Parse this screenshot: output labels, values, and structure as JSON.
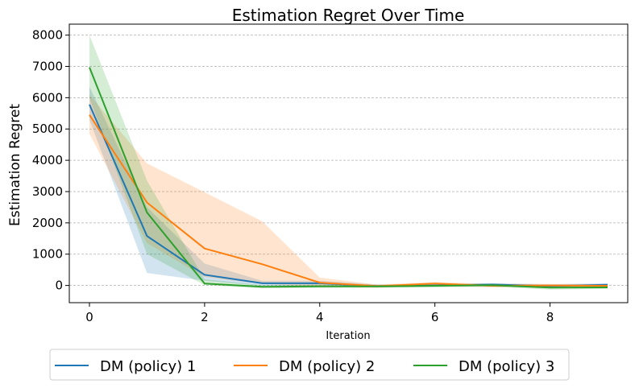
{
  "chart_data": {
    "type": "line",
    "title": "Estimation Regret Over Time",
    "xlabel": "Iteration",
    "ylabel": "Estimation Regret",
    "x": [
      0,
      1,
      2,
      3,
      4,
      5,
      6,
      7,
      8,
      9
    ],
    "xlim": [
      -0.35,
      9.35
    ],
    "ylim": [
      -550,
      8350
    ],
    "xticks": [
      0,
      2,
      4,
      6,
      8
    ],
    "yticks": [
      0,
      1000,
      2000,
      3000,
      4000,
      5000,
      6000,
      7000,
      8000
    ],
    "grid": "horizontal dashed",
    "legend_position": "below plot",
    "series": [
      {
        "name": "DM (policy) 1",
        "color": "#1f77b4",
        "values": [
          5780,
          1580,
          340,
          70,
          70,
          -20,
          0,
          30,
          -20,
          20
        ],
        "lower": [
          5300,
          400,
          150,
          -10,
          -40,
          -60,
          -40,
          -20,
          -80,
          -40
        ],
        "upper": [
          6350,
          2500,
          700,
          150,
          150,
          30,
          40,
          70,
          40,
          70
        ]
      },
      {
        "name": "DM (policy) 2",
        "color": "#ff7f0e",
        "values": [
          5450,
          2650,
          1180,
          680,
          90,
          -20,
          60,
          -10,
          0,
          -10
        ],
        "lower": [
          4850,
          1350,
          270,
          50,
          -40,
          -80,
          0,
          -60,
          -50,
          -50
        ],
        "upper": [
          6100,
          3900,
          2980,
          2050,
          250,
          30,
          110,
          50,
          50,
          40
        ]
      },
      {
        "name": "DM (policy) 3",
        "color": "#2ca02c",
        "values": [
          6970,
          2330,
          60,
          -40,
          -30,
          -30,
          -10,
          10,
          -70,
          -60
        ],
        "lower": [
          6000,
          1000,
          10,
          -90,
          -80,
          -70,
          -60,
          -40,
          -130,
          -110
        ],
        "upper": [
          8000,
          3350,
          200,
          10,
          20,
          20,
          30,
          60,
          -10,
          -10
        ]
      }
    ]
  }
}
